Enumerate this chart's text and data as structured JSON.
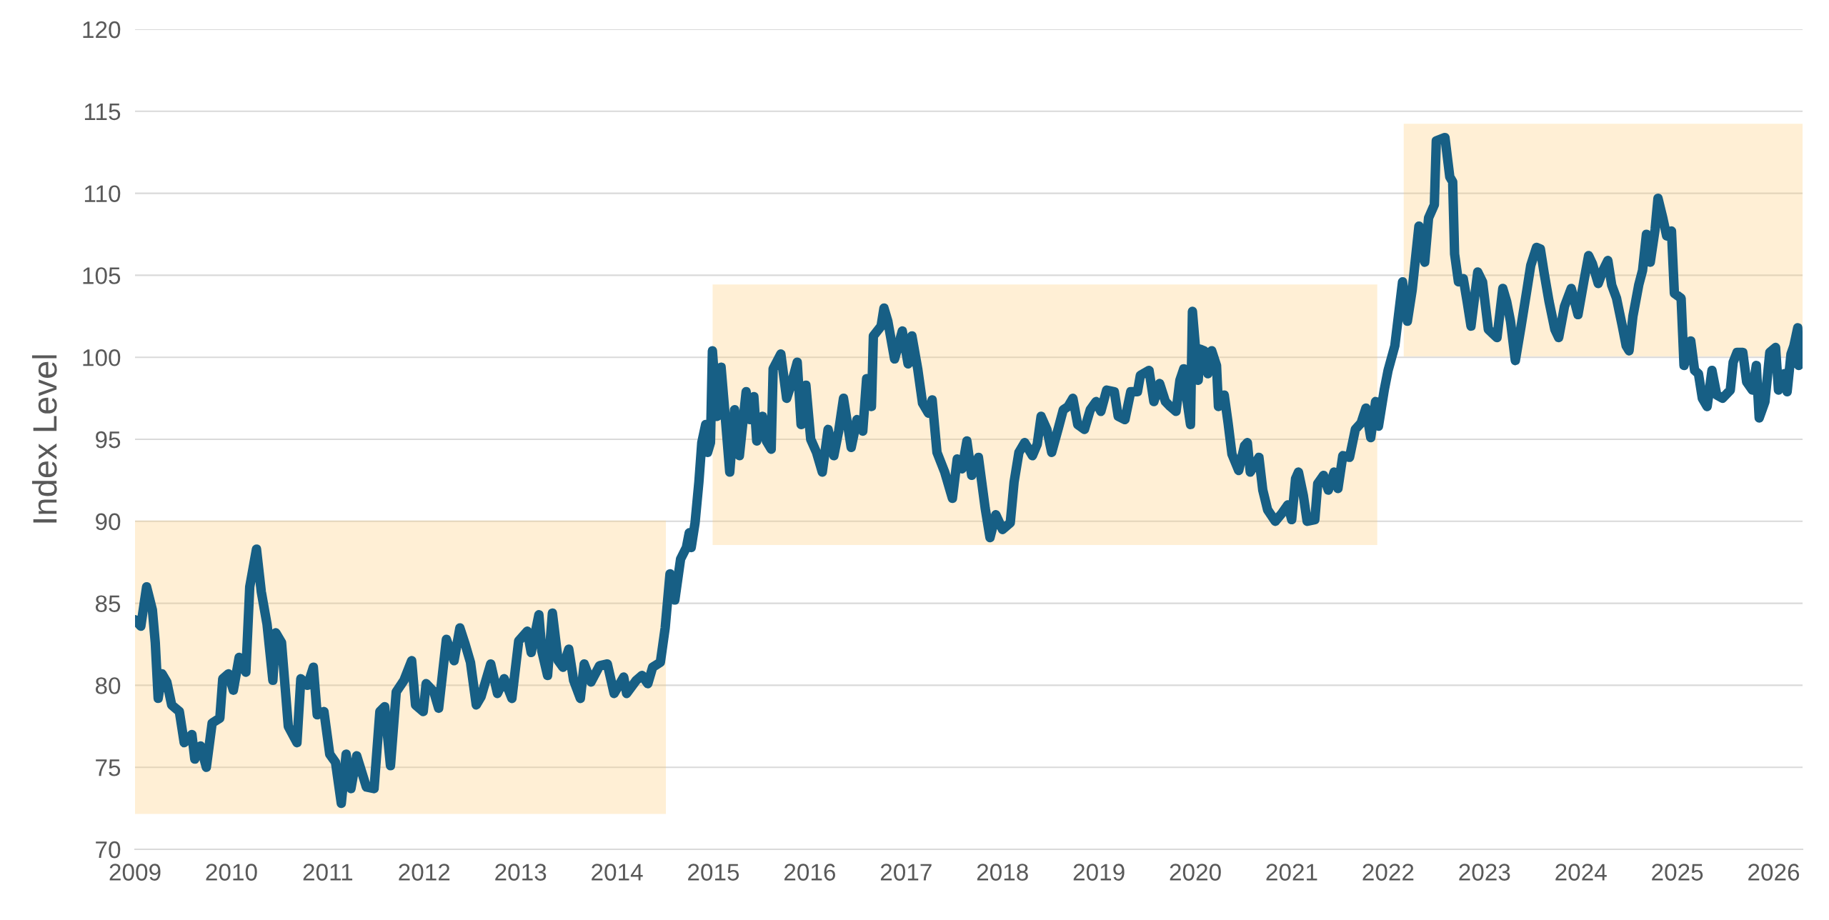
{
  "chart_data": {
    "type": "line",
    "ylabel": "Index Level",
    "xlim": [
      2009,
      2026.3
    ],
    "xticks": [
      2009,
      2010,
      2011,
      2012,
      2013,
      2014,
      2015,
      2016,
      2017,
      2018,
      2019,
      2020,
      2021,
      2022,
      2023,
      2024,
      2025,
      2026
    ],
    "ylim": [
      70,
      120
    ],
    "yticks": [
      70,
      75,
      80,
      85,
      90,
      95,
      100,
      105,
      110,
      115,
      120
    ],
    "grid": "y",
    "marker": "none",
    "line_style": "solid",
    "series": [
      {
        "color": "#175f85",
        "x": [
          2009.0,
          2009.06,
          2009.12,
          2009.18,
          2009.21,
          2009.24,
          2009.28,
          2009.33,
          2009.38,
          2009.46,
          2009.51,
          2009.59,
          2009.62,
          2009.68,
          2009.74,
          2009.8,
          2009.88,
          2009.91,
          2009.97,
          2010.02,
          2010.08,
          2010.15,
          2010.19,
          2010.26,
          2010.31,
          2010.37,
          2010.43,
          2010.46,
          2010.52,
          2010.59,
          2010.68,
          2010.72,
          2010.79,
          2010.85,
          2010.89,
          2010.96,
          2011.02,
          2011.08,
          2011.14,
          2011.19,
          2011.24,
          2011.3,
          2011.4,
          2011.48,
          2011.54,
          2011.59,
          2011.65,
          2011.71,
          2011.79,
          2011.87,
          2011.91,
          2011.99,
          2012.02,
          2012.1,
          2012.15,
          2012.23,
          2012.31,
          2012.37,
          2012.42,
          2012.48,
          2012.54,
          2012.59,
          2012.69,
          2012.76,
          2012.83,
          2012.91,
          2012.98,
          2013.07,
          2013.11,
          2013.19,
          2013.22,
          2013.28,
          2013.33,
          2013.39,
          2013.44,
          2013.5,
          2013.55,
          2013.62,
          2013.66,
          2013.73,
          2013.82,
          2013.9,
          2013.97,
          2014.07,
          2014.1,
          2014.2,
          2014.26,
          2014.32,
          2014.37,
          2014.45,
          2014.5,
          2014.55,
          2014.6,
          2014.66,
          2014.72,
          2014.75,
          2014.77,
          2014.81,
          2014.85,
          2014.88,
          2014.92,
          2014.94,
          2014.97,
          2014.99,
          2015.04,
          2015.08,
          2015.12,
          2015.17,
          2015.22,
          2015.27,
          2015.34,
          2015.38,
          2015.42,
          2015.45,
          2015.51,
          2015.55,
          2015.6,
          2015.62,
          2015.7,
          2015.76,
          2015.81,
          2015.87,
          2015.91,
          2015.96,
          2016.01,
          2016.07,
          2016.13,
          2016.19,
          2016.25,
          2016.3,
          2016.35,
          2016.43,
          2016.49,
          2016.55,
          2016.59,
          2016.64,
          2016.66,
          2016.74,
          2016.77,
          2016.81,
          2016.88,
          2016.96,
          2017.02,
          2017.06,
          2017.12,
          2017.17,
          2017.23,
          2017.27,
          2017.32,
          2017.4,
          2017.48,
          2017.53,
          2017.58,
          2017.63,
          2017.68,
          2017.75,
          2017.82,
          2017.87,
          2017.93,
          2018.0,
          2018.08,
          2018.12,
          2018.17,
          2018.23,
          2018.31,
          2018.36,
          2018.4,
          2018.46,
          2018.51,
          2018.58,
          2018.63,
          2018.68,
          2018.73,
          2018.78,
          2018.85,
          2018.91,
          2018.97,
          2019.02,
          2019.08,
          2019.16,
          2019.2,
          2019.27,
          2019.33,
          2019.4,
          2019.43,
          2019.52,
          2019.57,
          2019.63,
          2019.69,
          2019.74,
          2019.8,
          2019.84,
          2019.88,
          2019.91,
          2019.95,
          2019.97,
          2020.03,
          2020.05,
          2020.09,
          2020.13,
          2020.17,
          2020.22,
          2020.24,
          2020.3,
          2020.34,
          2020.38,
          2020.45,
          2020.51,
          2020.54,
          2020.57,
          2020.66,
          2020.7,
          2020.75,
          2020.83,
          2020.9,
          2020.96,
          2021.0,
          2021.04,
          2021.07,
          2021.12,
          2021.16,
          2021.24,
          2021.27,
          2021.33,
          2021.38,
          2021.44,
          2021.48,
          2021.53,
          2021.6,
          2021.66,
          2021.72,
          2021.77,
          2021.82,
          2021.87,
          2021.9,
          2021.96,
          2022.0,
          2022.07,
          2022.15,
          2022.2,
          2022.25,
          2022.32,
          2022.38,
          2022.42,
          2022.48,
          2022.5,
          2022.59,
          2022.64,
          2022.67,
          2022.69,
          2022.73,
          2022.78,
          2022.82,
          2022.86,
          2022.93,
          2022.98,
          2023.04,
          2023.13,
          2023.19,
          2023.23,
          2023.27,
          2023.32,
          2023.38,
          2023.44,
          2023.48,
          2023.54,
          2023.58,
          2023.62,
          2023.67,
          2023.73,
          2023.77,
          2023.83,
          2023.9,
          2023.97,
          2024.03,
          2024.08,
          2024.12,
          2024.18,
          2024.23,
          2024.28,
          2024.32,
          2024.37,
          2024.43,
          2024.47,
          2024.5,
          2024.54,
          2024.6,
          2024.64,
          2024.68,
          2024.72,
          2024.77,
          2024.8,
          2024.85,
          2024.89,
          2024.94,
          2024.97,
          2025.04,
          2025.07,
          2025.14,
          2025.18,
          2025.22,
          2025.26,
          2025.31,
          2025.36,
          2025.41,
          2025.47,
          2025.55,
          2025.58,
          2025.62,
          2025.68,
          2025.72,
          2025.78,
          2025.82,
          2025.85,
          2025.91,
          2025.96,
          2026.02,
          2026.05,
          2026.11,
          2026.14,
          2026.18,
          2026.21,
          2026.25,
          2026.26
        ],
        "values": [
          84.0,
          83.6,
          86.0,
          84.6,
          82.6,
          79.2,
          80.7,
          80.2,
          78.8,
          78.4,
          76.5,
          77.0,
          75.5,
          76.3,
          75.0,
          77.7,
          78.0,
          80.4,
          80.7,
          79.7,
          81.7,
          80.8,
          86.0,
          88.3,
          85.7,
          83.7,
          80.3,
          83.2,
          82.6,
          77.5,
          76.5,
          80.4,
          80.0,
          81.1,
          78.2,
          78.4,
          75.8,
          75.3,
          72.8,
          75.8,
          73.7,
          75.7,
          73.8,
          73.7,
          78.4,
          78.7,
          75.1,
          79.6,
          80.3,
          81.5,
          78.8,
          78.4,
          80.1,
          79.6,
          78.6,
          82.8,
          81.5,
          83.5,
          82.6,
          81.4,
          78.8,
          79.3,
          81.3,
          79.5,
          80.4,
          79.2,
          82.7,
          83.3,
          82.0,
          84.3,
          82.1,
          80.6,
          84.4,
          81.5,
          81.1,
          82.2,
          80.3,
          79.2,
          81.3,
          80.2,
          81.2,
          81.3,
          79.5,
          80.5,
          79.5,
          80.3,
          80.6,
          80.1,
          81.1,
          81.4,
          83.5,
          86.8,
          85.2,
          87.7,
          88.4,
          89.3,
          88.4,
          89.9,
          92.4,
          94.8,
          95.9,
          94.2,
          94.8,
          100.4,
          96.4,
          99.4,
          96.6,
          93.0,
          96.8,
          94.0,
          97.9,
          96.2,
          97.6,
          94.9,
          96.4,
          94.9,
          94.4,
          99.3,
          100.2,
          97.5,
          98.4,
          99.7,
          95.9,
          98.3,
          95.0,
          94.2,
          93.0,
          95.6,
          94.0,
          95.5,
          97.5,
          94.5,
          96.2,
          95.5,
          98.7,
          97.0,
          101.3,
          101.9,
          103.0,
          102.2,
          99.9,
          101.6,
          99.6,
          101.3,
          99.3,
          97.2,
          96.6,
          97.4,
          94.2,
          93.0,
          91.4,
          93.8,
          93.2,
          94.9,
          92.8,
          93.9,
          90.8,
          89.0,
          90.4,
          89.5,
          89.9,
          92.4,
          94.2,
          94.8,
          94.0,
          94.7,
          96.4,
          95.6,
          94.2,
          95.7,
          96.8,
          97.0,
          97.5,
          95.9,
          95.6,
          96.8,
          97.3,
          96.7,
          98.0,
          97.9,
          96.4,
          96.2,
          97.9,
          97.9,
          98.9,
          99.2,
          97.3,
          98.4,
          97.3,
          97.0,
          96.7,
          98.6,
          99.3,
          97.5,
          95.9,
          102.8,
          98.6,
          100.5,
          100.4,
          99.0,
          100.4,
          99.5,
          97.0,
          97.7,
          96.0,
          94.1,
          93.1,
          94.6,
          94.8,
          93.0,
          93.9,
          91.9,
          90.7,
          90.0,
          90.5,
          91.0,
          90.1,
          92.6,
          93.0,
          91.6,
          90.0,
          90.1,
          92.3,
          92.8,
          91.9,
          93.0,
          92.0,
          94.0,
          93.9,
          95.6,
          96.0,
          96.9,
          95.1,
          97.3,
          95.8,
          98.0,
          99.2,
          100.7,
          104.6,
          102.2,
          104.1,
          108.0,
          105.8,
          108.5,
          109.3,
          113.2,
          113.4,
          111.0,
          110.7,
          106.3,
          104.6,
          104.8,
          103.4,
          101.9,
          105.2,
          104.6,
          101.7,
          101.2,
          104.2,
          103.4,
          102.2,
          99.8,
          101.9,
          104.1,
          105.6,
          106.7,
          106.6,
          105.1,
          103.4,
          101.7,
          101.2,
          103.1,
          104.2,
          102.6,
          104.6,
          106.2,
          105.7,
          104.5,
          105.3,
          105.9,
          104.4,
          103.6,
          101.9,
          100.7,
          100.4,
          102.5,
          104.4,
          105.3,
          107.5,
          105.8,
          107.8,
          109.7,
          108.5,
          107.4,
          107.7,
          103.9,
          103.6,
          99.5,
          101.0,
          99.2,
          99.0,
          97.5,
          97.0,
          99.2,
          97.7,
          97.5,
          98.0,
          99.7,
          100.3,
          100.3,
          98.5,
          98.0,
          99.5,
          96.3,
          97.3,
          100.3,
          100.6,
          98.0,
          99.0,
          97.9,
          100.2,
          100.7,
          101.8,
          99.5
        ]
      },
      {
        "type": "area",
        "color": "#ffcd77",
        "x": [
          2009.0,
          2009.0,
          2014.5,
          2014.5
        ],
        "values": [
          72.2,
          90.0,
          90.0,
          72.2
        ]
      },
      {
        "type": "area",
        "color": "#ffcd77",
        "x": [
          2015.0,
          2015.0,
          2021.88,
          2021.88
        ],
        "values": [
          88.6,
          104.4,
          104.4,
          88.6
        ]
      },
      {
        "type": "area",
        "color": "#ffcd77",
        "x": [
          2022.17,
          2022.17,
          2026.3,
          2026.3
        ],
        "values": [
          100.1,
          114.2,
          114.2,
          100.1
        ]
      }
    ]
  }
}
